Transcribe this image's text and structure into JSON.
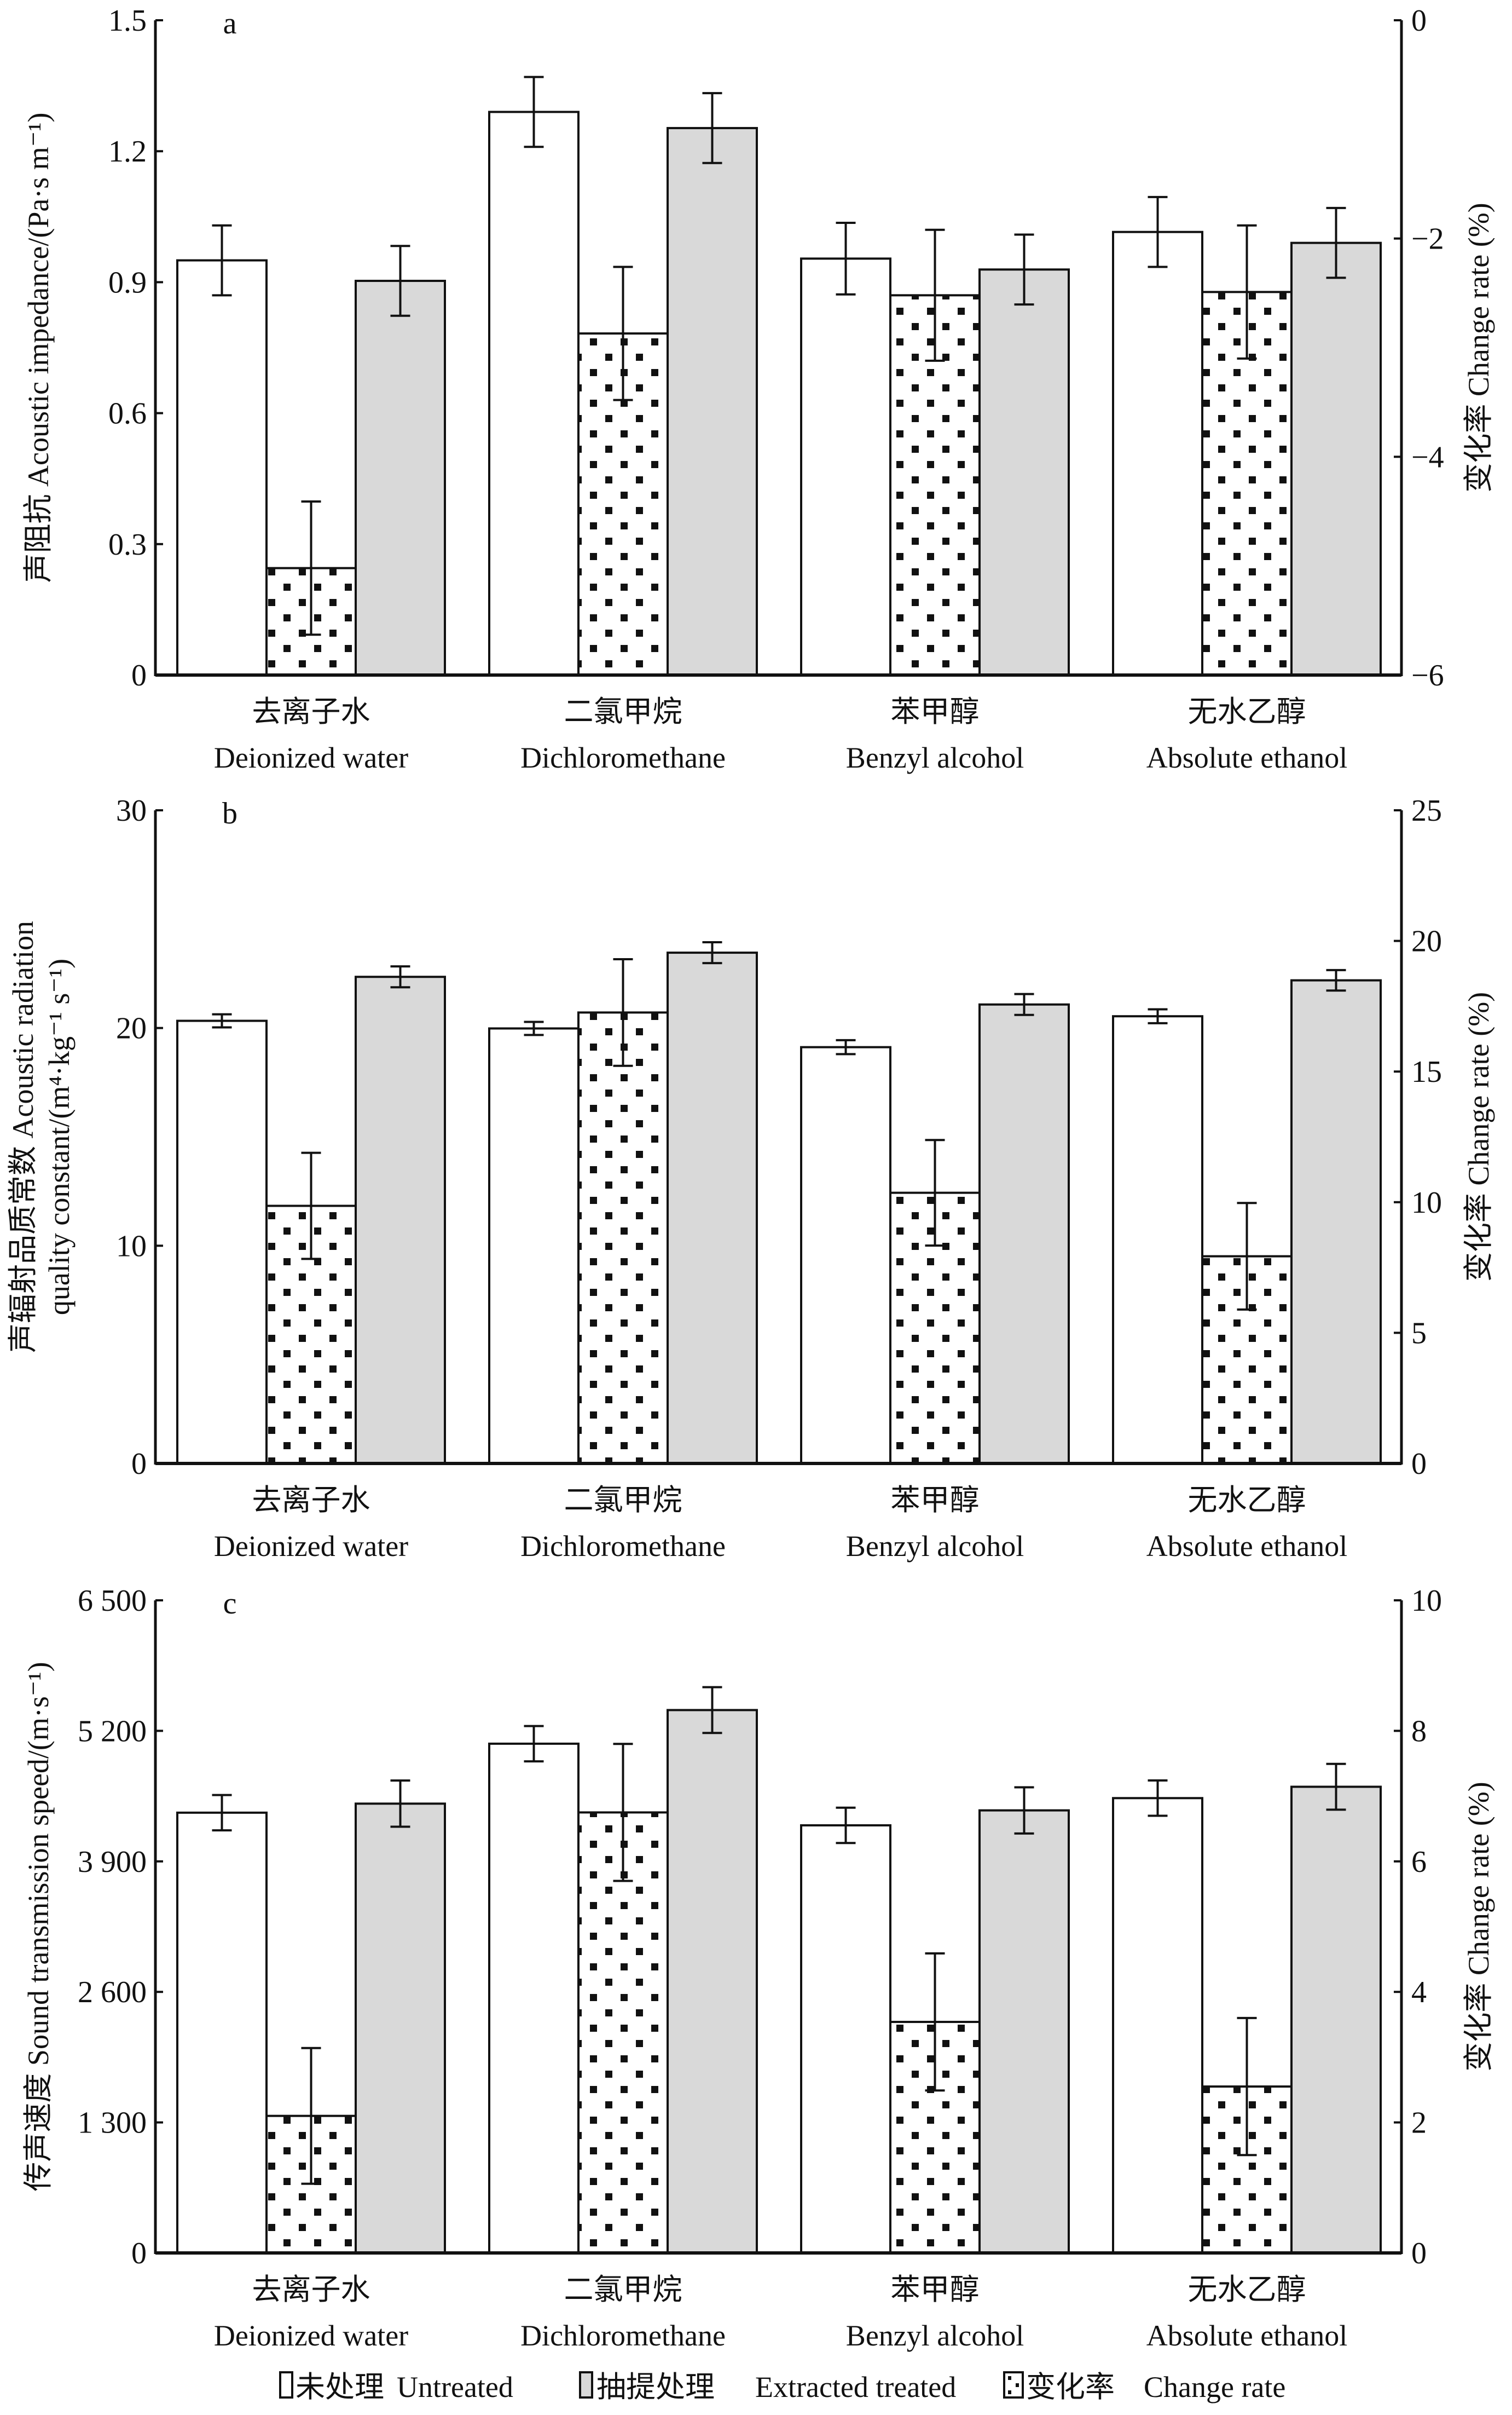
{
  "figure": {
    "legend": [
      {
        "key": "untreated",
        "label": "□未处理  Untreated",
        "label_zh": "未处理",
        "label_en": "Untreated",
        "fill": "#ffffff"
      },
      {
        "key": "extracted",
        "label": "抽提处理  Extracted treated",
        "label_zh": "抽提处理",
        "label_en": "Extracted treated",
        "fill": "#d9d9d9"
      },
      {
        "key": "change",
        "label": "变化率  Change rate",
        "label_zh": "变化率",
        "label_en": "Change rate",
        "fill": "pattern-dots"
      }
    ],
    "colors": {
      "untreated": "#ffffff",
      "extracted": "#d9d9d9",
      "change_pattern_dot": "#111111",
      "axis": "#111111"
    }
  },
  "chart_data": [
    {
      "type": "bar",
      "panel": "a",
      "title": "a",
      "categories_zh": [
        "去离子水",
        "二氯甲烷",
        "苯甲醇",
        "无水乙醇"
      ],
      "categories": [
        "Deionized water",
        "Dichloromethane",
        "Benzyl alcohol",
        "Absolute ethanol"
      ],
      "ylabel_zh": "声阻抗",
      "ylabel": "Acoustic impedance/(Pa·s m⁻¹)",
      "ylim": [
        0,
        1.5
      ],
      "yticks": [
        "0",
        "0.3",
        "0.6",
        "0.9",
        "1.2",
        "1.5"
      ],
      "ytick_values": [
        0,
        0.3,
        0.6,
        0.9,
        1.2,
        1.5
      ],
      "y2label_zh": "变化率",
      "y2label": "Change rate (%)",
      "y2lim": [
        -6,
        0
      ],
      "y2ticks": [
        "−6",
        "−4",
        "−2",
        "0"
      ],
      "y2tick_values": [
        -6,
        -4,
        -2,
        0
      ],
      "grid": false,
      "legend_position": "bottom",
      "series": [
        {
          "name": "Untreated",
          "axis": "left",
          "values": [
            0.95,
            1.29,
            0.954,
            1.015
          ],
          "errors": [
            0.08,
            0.08,
            0.082,
            0.08
          ]
        },
        {
          "name": "Change rate",
          "axis": "right",
          "values": [
            -5.02,
            -2.87,
            -2.52,
            -2.49
          ],
          "errors": [
            0.61,
            0.61,
            0.6,
            0.61
          ]
        },
        {
          "name": "Extracted treated",
          "axis": "left",
          "values": [
            0.903,
            1.253,
            0.929,
            0.99
          ],
          "errors": [
            0.08,
            0.08,
            0.08,
            0.08
          ]
        }
      ]
    },
    {
      "type": "bar",
      "panel": "b",
      "title": "b",
      "categories_zh": [
        "去离子水",
        "二氯甲烷",
        "苯甲醇",
        "无水乙醇"
      ],
      "categories": [
        "Deionized water",
        "Dichloromethane",
        "Benzyl alcohol",
        "Absolute ethanol"
      ],
      "ylabel_zh": "声辐射品质常数",
      "ylabel": "Acoustic radiation",
      "ylabel_line2": "quality constant/(m⁴·kg⁻¹ s⁻¹)",
      "ylim": [
        0,
        30
      ],
      "yticks": [
        "0",
        "10",
        "20",
        "30"
      ],
      "ytick_values": [
        0,
        10,
        20,
        30
      ],
      "y2label_zh": "变化率",
      "y2label": "Change rate (%)",
      "y2lim": [
        0,
        25
      ],
      "y2ticks": [
        "0",
        "5",
        "10",
        "15",
        "20",
        "25"
      ],
      "y2tick_values": [
        0,
        5,
        10,
        15,
        20,
        25
      ],
      "grid": false,
      "legend_position": "bottom",
      "series": [
        {
          "name": "Untreated",
          "axis": "left",
          "values": [
            20.33,
            19.98,
            19.12,
            20.54
          ],
          "errors": [
            0.3,
            0.3,
            0.32,
            0.32
          ]
        },
        {
          "name": "Change rate",
          "axis": "right",
          "values": [
            9.86,
            17.26,
            10.36,
            7.93
          ],
          "errors": [
            2.03,
            2.04,
            2.02,
            2.04
          ]
        },
        {
          "name": "Extracted treated",
          "axis": "left",
          "values": [
            22.35,
            23.46,
            21.08,
            22.19
          ],
          "errors": [
            0.48,
            0.48,
            0.48,
            0.47
          ]
        }
      ]
    },
    {
      "type": "bar",
      "panel": "c",
      "title": "c",
      "categories_zh": [
        "去离子水",
        "二氯甲烷",
        "苯甲醇",
        "无水乙醇"
      ],
      "categories": [
        "Deionized water",
        "Dichloromethane",
        "Benzyl alcohol",
        "Absolute ethanol"
      ],
      "ylabel_zh": "传声速度",
      "ylabel": "Sound transmission speed/(m·s⁻¹)",
      "ylim": [
        0,
        6500
      ],
      "yticks": [
        "0",
        "1 300",
        "2 600",
        "3 900",
        "5 200",
        "6 500"
      ],
      "ytick_values": [
        0,
        1300,
        2600,
        3900,
        5200,
        6500
      ],
      "y2label_zh": "变化率",
      "y2label": "Change rate (%)",
      "y2lim": [
        0,
        10
      ],
      "y2ticks": [
        "0",
        "2",
        "4",
        "6",
        "8",
        "10"
      ],
      "y2tick_values": [
        0,
        2,
        4,
        6,
        8,
        10
      ],
      "grid": false,
      "legend_position": "bottom",
      "series": [
        {
          "name": "Untreated",
          "axis": "left",
          "values": [
            4385,
            5072,
            4259,
            4530
          ],
          "errors": [
            176,
            176,
            176,
            176
          ]
        },
        {
          "name": "Change rate",
          "axis": "right",
          "values": [
            2.1,
            6.75,
            3.54,
            2.55
          ],
          "errors": [
            1.04,
            1.05,
            1.05,
            1.05
          ]
        },
        {
          "name": "Extracted treated",
          "axis": "left",
          "values": [
            4475,
            5407,
            4408,
            4643
          ],
          "errors": [
            230,
            228,
            230,
            228
          ]
        }
      ]
    }
  ]
}
